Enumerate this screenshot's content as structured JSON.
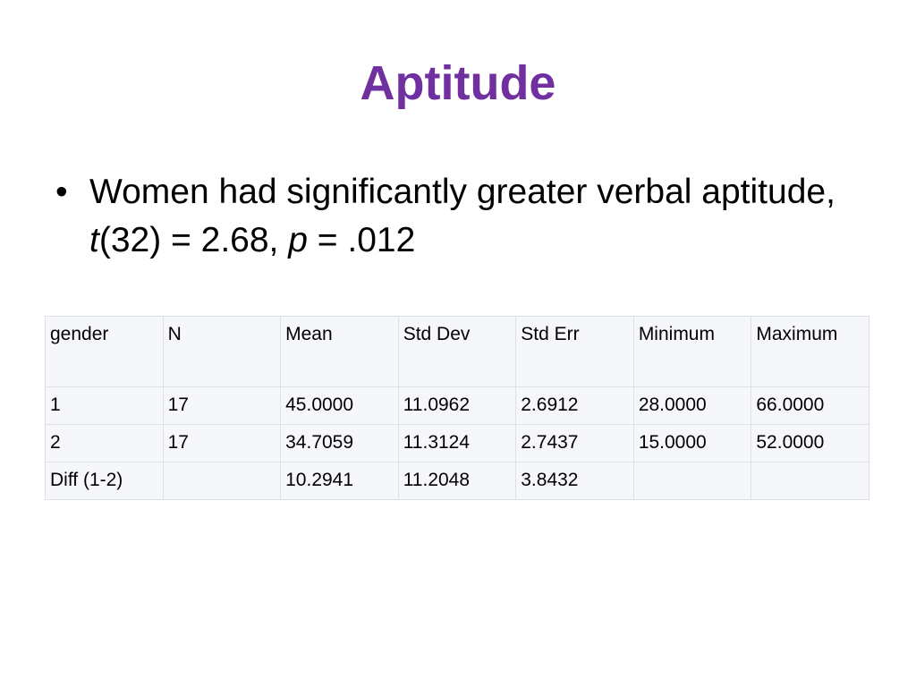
{
  "header": {
    "title": "Aptitude"
  },
  "bullet": {
    "parts": [
      "Women had significantly greater verbal aptitude, ",
      "t",
      "(32) = 2.68, ",
      "p",
      " = .012"
    ]
  },
  "table": {
    "columns": [
      "gender",
      "N",
      "Mean",
      "Std Dev",
      "Std Err",
      "Minimum",
      "Maximum"
    ],
    "rows": [
      [
        "1",
        "17",
        "45.0000",
        "11.0962",
        "2.6912",
        "28.0000",
        "66.0000"
      ],
      [
        "2",
        "17",
        "34.7059",
        "11.3124",
        "2.7437",
        "15.0000",
        "52.0000"
      ],
      [
        "Diff (1-2)",
        null,
        "10.2941",
        "11.2048",
        "3.8432",
        null,
        null
      ]
    ]
  }
}
